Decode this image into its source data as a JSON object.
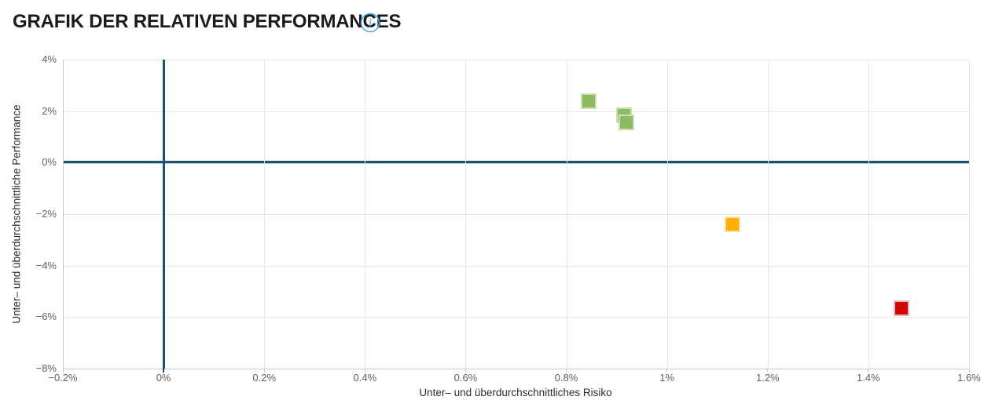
{
  "header": {
    "title": "GRAFIK DER RELATIVEN PERFORMANCES",
    "info_icon": {
      "name": "info-icon",
      "glyph": "i",
      "color": "#4FA8DC"
    }
  },
  "colors": {
    "zero_line": "#1C506E",
    "axis_line": "#B7CCDE",
    "gridline": "#E7E7E7",
    "tick_text": "#606060",
    "axis_title_text": "#2E2E2E",
    "title_text": "#1A1A1A"
  },
  "chart_data": {
    "type": "scatter",
    "title": "GRAFIK DER RELATIVEN PERFORMANCES",
    "xlabel": "Unter– und überdurchschnittliches Risiko",
    "ylabel": "Unter– und überdurchschnittliche Performance",
    "x_unit": "%",
    "y_unit": "%",
    "xlim": [
      -0.2,
      1.6
    ],
    "ylim": [
      -8,
      4
    ],
    "grid": true,
    "legend": "none",
    "x_ticks": [
      {
        "value": -0.2,
        "label": "−0.2%"
      },
      {
        "value": 0,
        "label": "0%"
      },
      {
        "value": 0.2,
        "label": "0.2%"
      },
      {
        "value": 0.4,
        "label": "0.4%"
      },
      {
        "value": 0.6,
        "label": "0.6%"
      },
      {
        "value": 0.8,
        "label": "0.8%"
      },
      {
        "value": 1,
        "label": "1%"
      },
      {
        "value": 1.2,
        "label": "1.2%"
      },
      {
        "value": 1.4,
        "label": "1.4%"
      },
      {
        "value": 1.6,
        "label": "1.6%"
      }
    ],
    "y_ticks": [
      {
        "value": 4,
        "label": "4%"
      },
      {
        "value": 2,
        "label": "2%"
      },
      {
        "value": 0,
        "label": "0%"
      },
      {
        "value": -2,
        "label": "−2%"
      },
      {
        "value": -4,
        "label": "−4%"
      },
      {
        "value": -6,
        "label": "−6%"
      },
      {
        "value": -8,
        "label": "−8%"
      }
    ],
    "marker": {
      "shape": "square",
      "size": 16,
      "border": 2
    },
    "points": [
      {
        "x": 0.845,
        "y": 2.4,
        "series": "green",
        "color": "#8DBA63",
        "halo": "#CDE0B0"
      },
      {
        "x": 0.915,
        "y": 1.85,
        "series": "green",
        "color": "#8DBA63",
        "halo": "#CDE0B0"
      },
      {
        "x": 0.92,
        "y": 1.55,
        "series": "green",
        "color": "#8DBA63",
        "halo": "#CDE0B0"
      },
      {
        "x": 1.13,
        "y": -2.4,
        "series": "orange",
        "color": "#FFB005",
        "halo": "#FFE0A1"
      },
      {
        "x": 1.465,
        "y": -5.65,
        "series": "red",
        "color": "#D40505",
        "halo": "#EDB9B9"
      }
    ]
  }
}
